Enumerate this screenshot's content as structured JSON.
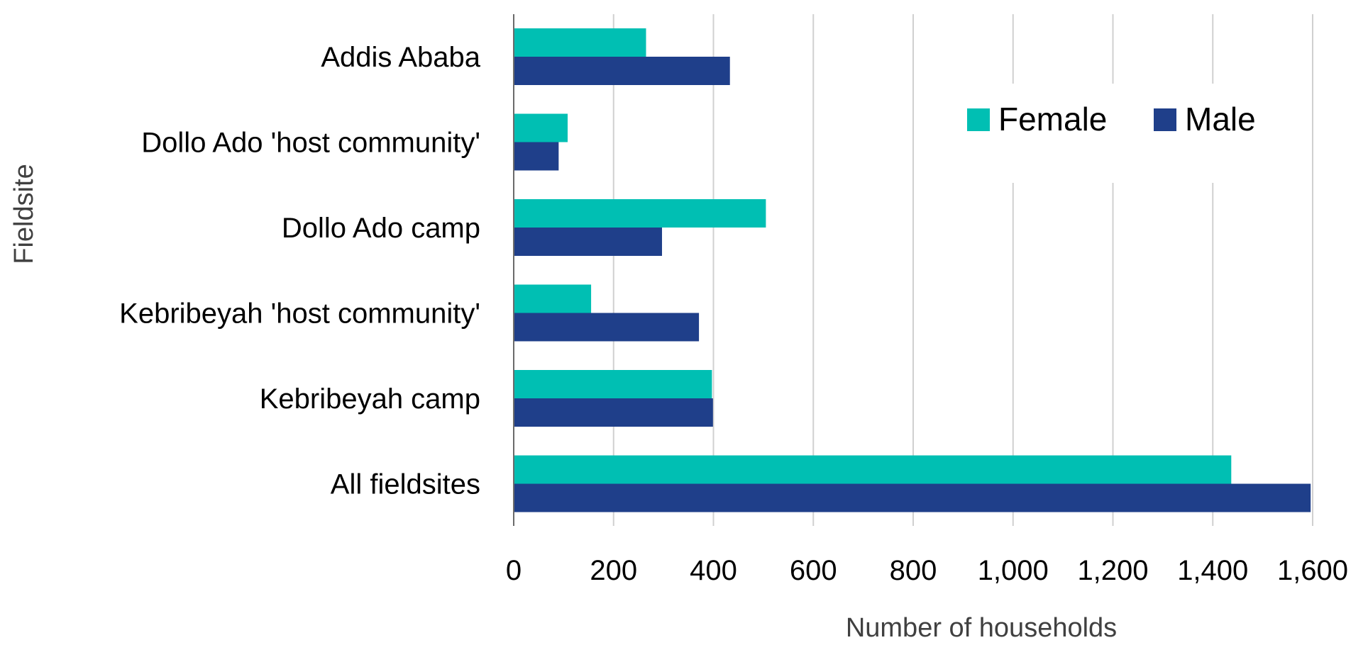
{
  "chart_data": {
    "type": "bar",
    "orientation": "horizontal",
    "categories": [
      "Addis Ababa",
      "Dollo Ado 'host community'",
      "Dollo Ado camp",
      "Kebribeyah 'host community'",
      "Kebribeyah camp",
      "All fieldsites"
    ],
    "series": [
      {
        "name": "Female",
        "color": "#00BFB3",
        "values": [
          265,
          108,
          505,
          155,
          397,
          1437
        ]
      },
      {
        "name": "Male",
        "color": "#1F3F8A",
        "values": [
          433,
          90,
          297,
          371,
          399,
          1596
        ]
      }
    ],
    "xlabel": "Number of households",
    "ylabel": "Fieldsite",
    "xlim": [
      0,
      1600
    ],
    "xticks": [
      "0",
      "200",
      "400",
      "600",
      "800",
      "1,000",
      "1,200",
      "1,400",
      "1,600"
    ],
    "grid": "vertical",
    "legend_position": "top-right"
  }
}
